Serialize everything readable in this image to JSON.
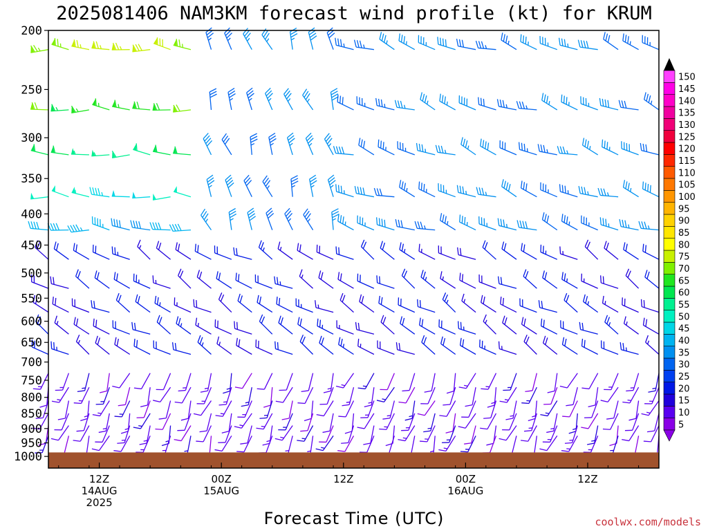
{
  "chart_data": {
    "type": "wind-barb-time-height",
    "title": "2025081406 NAM3KM forecast wind profile (kt) for KRUM",
    "xlabel": "Forecast Time (UTC)",
    "ylabel": "",
    "units": "kt",
    "y_axis": {
      "scale": "log-pressure",
      "range_hPa": [
        200,
        1000
      ],
      "ticks": [
        200,
        250,
        300,
        350,
        400,
        450,
        500,
        550,
        600,
        650,
        700,
        750,
        800,
        850,
        900,
        950,
        1000
      ]
    },
    "x_axis": {
      "range_hours": [
        1,
        61
      ],
      "ticks": [
        {
          "hour": 6,
          "lines": [
            "12Z",
            "14AUG",
            "2025"
          ]
        },
        {
          "hour": 18,
          "lines": [
            "00Z",
            "15AUG"
          ]
        },
        {
          "hour": 30,
          "lines": [
            "12Z"
          ]
        },
        {
          "hour": 42,
          "lines": [
            "00Z",
            "16AUG"
          ]
        },
        {
          "hour": 54,
          "lines": [
            "12Z"
          ]
        }
      ]
    },
    "grid": false,
    "legend": "right",
    "colorbar": {
      "values": [
        5,
        10,
        15,
        20,
        25,
        30,
        35,
        40,
        45,
        50,
        55,
        60,
        65,
        70,
        75,
        80,
        85,
        90,
        95,
        100,
        105,
        110,
        115,
        120,
        125,
        130,
        135,
        140,
        145,
        150
      ],
      "colors": [
        "#8a00e6",
        "#5a00f0",
        "#2000dc",
        "#0018e6",
        "#0040f0",
        "#0064f0",
        "#0090f0",
        "#00b4f0",
        "#00d6e6",
        "#00f0c0",
        "#00f090",
        "#00e650",
        "#20e620",
        "#80f000",
        "#c8f000",
        "#ffff00",
        "#ffe600",
        "#ffd200",
        "#ffb400",
        "#ff9600",
        "#ff7800",
        "#ff5a00",
        "#ff2800",
        "#ff0000",
        "#f0003c",
        "#f00078",
        "#f000a0",
        "#ff00c8",
        "#ff00e6",
        "#ff40ff"
      ]
    },
    "terrain_color": "#a0522d",
    "levels_hPa": [
      215,
      270,
      320,
      375,
      425,
      475,
      530,
      580,
      630,
      680,
      730,
      770,
      810,
      850,
      890,
      925
    ],
    "times_hours": [
      1,
      3,
      5,
      7,
      9,
      11,
      13,
      15,
      17,
      19,
      21,
      23,
      25,
      27,
      29,
      31,
      33,
      35,
      37,
      39,
      41,
      43,
      45,
      47,
      49,
      51,
      53,
      55,
      57,
      59,
      61
    ],
    "wind_fields": {
      "note_units": "direction in degrees (meteorological, from), speed in kt",
      "upper": [
        {
          "hours": [
            1,
            15
          ],
          "level_range_hPa": [
            200,
            450
          ],
          "direction": 275,
          "speed": 45
        },
        {
          "hours": [
            17,
            29
          ],
          "level_range_hPa": [
            200,
            450
          ],
          "direction": 340,
          "speed": 35
        },
        {
          "hours": [
            31,
            61
          ],
          "level_range_hPa": [
            200,
            450
          ],
          "direction": 290,
          "speed": 35
        }
      ],
      "middle": [
        {
          "hours": [
            1,
            61
          ],
          "level_range_hPa": [
            500,
            700
          ],
          "direction": 300,
          "speed": 20
        }
      ],
      "lower": [
        {
          "hours": [
            1,
            61
          ],
          "level_range_hPa": [
            750,
            950
          ],
          "direction": 200,
          "speed": 12
        }
      ]
    }
  },
  "credit": "coolwx.com/models"
}
